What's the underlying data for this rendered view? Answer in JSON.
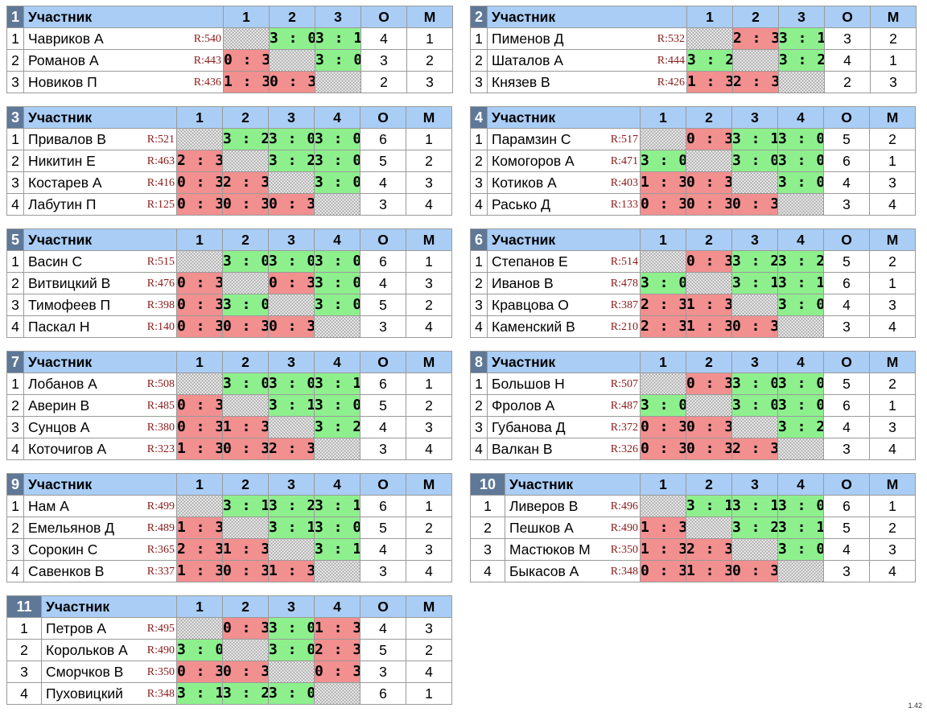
{
  "header_label": "Участник",
  "points_label": "О",
  "place_label": "М",
  "version": "1.42",
  "groups": [
    {
      "num": "1",
      "cols": [
        "1",
        "2",
        "3"
      ],
      "rows": [
        {
          "n": "1",
          "name": "Чавриков А",
          "rating": "R:540",
          "results": [
            null,
            "3 : 0",
            "3 : 1"
          ],
          "o": "4",
          "m": "1"
        },
        {
          "n": "2",
          "name": "Романов А",
          "rating": "R:443",
          "results": [
            "0 : 3",
            null,
            "3 : 0"
          ],
          "o": "3",
          "m": "2"
        },
        {
          "n": "3",
          "name": "Новиков П",
          "rating": "R:436",
          "results": [
            "1 : 3",
            "0 : 3",
            null
          ],
          "o": "2",
          "m": "3"
        }
      ]
    },
    {
      "num": "2",
      "cols": [
        "1",
        "2",
        "3"
      ],
      "rows": [
        {
          "n": "1",
          "name": "Пименов Д",
          "rating": "R:532",
          "results": [
            null,
            "2 : 3",
            "3 : 1"
          ],
          "o": "3",
          "m": "2"
        },
        {
          "n": "2",
          "name": "Шаталов А",
          "rating": "R:444",
          "results": [
            "3 : 2",
            null,
            "3 : 2"
          ],
          "o": "4",
          "m": "1"
        },
        {
          "n": "3",
          "name": "Князев В",
          "rating": "R:426",
          "results": [
            "1 : 3",
            "2 : 3",
            null
          ],
          "o": "2",
          "m": "3"
        }
      ]
    },
    {
      "num": "3",
      "cols": [
        "1",
        "2",
        "3",
        "4"
      ],
      "rows": [
        {
          "n": "1",
          "name": "Привалов В",
          "rating": "R:521",
          "results": [
            null,
            "3 : 2",
            "3 : 0",
            "3 : 0"
          ],
          "o": "6",
          "m": "1"
        },
        {
          "n": "2",
          "name": "Никитин Е",
          "rating": "R:463",
          "results": [
            "2 : 3",
            null,
            "3 : 2",
            "3 : 0"
          ],
          "o": "5",
          "m": "2"
        },
        {
          "n": "3",
          "name": "Костарев А",
          "rating": "R:416",
          "results": [
            "0 : 3",
            "2 : 3",
            null,
            "3 : 0"
          ],
          "o": "4",
          "m": "3"
        },
        {
          "n": "4",
          "name": "Лабутин П",
          "rating": "R:125",
          "results": [
            "0 : 3",
            "0 : 3",
            "0 : 3",
            null
          ],
          "o": "3",
          "m": "4"
        }
      ]
    },
    {
      "num": "4",
      "cols": [
        "1",
        "2",
        "3",
        "4"
      ],
      "rows": [
        {
          "n": "1",
          "name": "Парамзин С",
          "rating": "R:517",
          "results": [
            null,
            "0 : 3",
            "3 : 1",
            "3 : 0"
          ],
          "o": "5",
          "m": "2"
        },
        {
          "n": "2",
          "name": "Комогоров А",
          "rating": "R:471",
          "results": [
            "3 : 0",
            null,
            "3 : 0",
            "3 : 0"
          ],
          "o": "6",
          "m": "1"
        },
        {
          "n": "3",
          "name": "Котиков А",
          "rating": "R:403",
          "results": [
            "1 : 3",
            "0 : 3",
            null,
            "3 : 0"
          ],
          "o": "4",
          "m": "3"
        },
        {
          "n": "4",
          "name": "Расько Д",
          "rating": "R:133",
          "results": [
            "0 : 3",
            "0 : 3",
            "0 : 3",
            null
          ],
          "o": "3",
          "m": "4"
        }
      ]
    },
    {
      "num": "5",
      "cols": [
        "1",
        "2",
        "3",
        "4"
      ],
      "rows": [
        {
          "n": "1",
          "name": "Васин С",
          "rating": "R:515",
          "results": [
            null,
            "3 : 0",
            "3 : 0",
            "3 : 0"
          ],
          "o": "6",
          "m": "1"
        },
        {
          "n": "2",
          "name": "Витвицкий В",
          "rating": "R:476",
          "results": [
            "0 : 3",
            null,
            "0 : 3",
            "3 : 0"
          ],
          "o": "4",
          "m": "3"
        },
        {
          "n": "3",
          "name": "Тимофеев П",
          "rating": "R:398",
          "results": [
            "0 : 3",
            "3 : 0",
            null,
            "3 : 0"
          ],
          "o": "5",
          "m": "2"
        },
        {
          "n": "4",
          "name": "Паскал Н",
          "rating": "R:140",
          "results": [
            "0 : 3",
            "0 : 3",
            "0 : 3",
            null
          ],
          "o": "3",
          "m": "4"
        }
      ]
    },
    {
      "num": "6",
      "cols": [
        "1",
        "2",
        "3",
        "4"
      ],
      "rows": [
        {
          "n": "1",
          "name": "Степанов Е",
          "rating": "R:514",
          "results": [
            null,
            "0 : 3",
            "3 : 2",
            "3 : 2"
          ],
          "o": "5",
          "m": "2"
        },
        {
          "n": "2",
          "name": "Иванов В",
          "rating": "R:478",
          "results": [
            "3 : 0",
            null,
            "3 : 1",
            "3 : 1"
          ],
          "o": "6",
          "m": "1"
        },
        {
          "n": "3",
          "name": "Кравцова О",
          "rating": "R:387",
          "results": [
            "2 : 3",
            "1 : 3",
            null,
            "3 : 0"
          ],
          "o": "4",
          "m": "3"
        },
        {
          "n": "4",
          "name": "Каменский В",
          "rating": "R:210",
          "results": [
            "2 : 3",
            "1 : 3",
            "0 : 3",
            null
          ],
          "o": "3",
          "m": "4"
        }
      ]
    },
    {
      "num": "7",
      "cols": [
        "1",
        "2",
        "3",
        "4"
      ],
      "rows": [
        {
          "n": "1",
          "name": "Лобанов А",
          "rating": "R:508",
          "results": [
            null,
            "3 : 0",
            "3 : 0",
            "3 : 1"
          ],
          "o": "6",
          "m": "1"
        },
        {
          "n": "2",
          "name": "Аверин В",
          "rating": "R:485",
          "results": [
            "0 : 3",
            null,
            "3 : 1",
            "3 : 0"
          ],
          "o": "5",
          "m": "2"
        },
        {
          "n": "3",
          "name": "Сунцов А",
          "rating": "R:380",
          "results": [
            "0 : 3",
            "1 : 3",
            null,
            "3 : 2"
          ],
          "o": "4",
          "m": "3"
        },
        {
          "n": "4",
          "name": "Коточигов А",
          "rating": "R:323",
          "results": [
            "1 : 3",
            "0 : 3",
            "2 : 3",
            null
          ],
          "o": "3",
          "m": "4"
        }
      ]
    },
    {
      "num": "8",
      "cols": [
        "1",
        "2",
        "3",
        "4"
      ],
      "rows": [
        {
          "n": "1",
          "name": "Большов Н",
          "rating": "R:507",
          "results": [
            null,
            "0 : 3",
            "3 : 0",
            "3 : 0"
          ],
          "o": "5",
          "m": "2"
        },
        {
          "n": "2",
          "name": "Фролов А",
          "rating": "R:487",
          "results": [
            "3 : 0",
            null,
            "3 : 0",
            "3 : 0"
          ],
          "o": "6",
          "m": "1"
        },
        {
          "n": "3",
          "name": "Губанова Д",
          "rating": "R:372",
          "results": [
            "0 : 3",
            "0 : 3",
            null,
            "3 : 2"
          ],
          "o": "4",
          "m": "3"
        },
        {
          "n": "4",
          "name": "Валкан В",
          "rating": "R:326",
          "results": [
            "0 : 3",
            "0 : 3",
            "2 : 3",
            null
          ],
          "o": "3",
          "m": "4"
        }
      ]
    },
    {
      "num": "9",
      "cols": [
        "1",
        "2",
        "3",
        "4"
      ],
      "rows": [
        {
          "n": "1",
          "name": "Нам А",
          "rating": "R:499",
          "results": [
            null,
            "3 : 1",
            "3 : 2",
            "3 : 1"
          ],
          "o": "6",
          "m": "1"
        },
        {
          "n": "2",
          "name": "Емельянов Д",
          "rating": "R:489",
          "results": [
            "1 : 3",
            null,
            "3 : 1",
            "3 : 0"
          ],
          "o": "5",
          "m": "2"
        },
        {
          "n": "3",
          "name": "Сорокин С",
          "rating": "R:365",
          "results": [
            "2 : 3",
            "1 : 3",
            null,
            "3 : 1"
          ],
          "o": "4",
          "m": "3"
        },
        {
          "n": "4",
          "name": "Савенков В",
          "rating": "R:337",
          "results": [
            "1 : 3",
            "0 : 3",
            "1 : 3",
            null
          ],
          "o": "3",
          "m": "4"
        }
      ]
    },
    {
      "num": "10",
      "cols": [
        "1",
        "2",
        "3",
        "4"
      ],
      "rows": [
        {
          "n": "1",
          "name": "Ливеров В",
          "rating": "R:496",
          "results": [
            null,
            "3 : 1",
            "3 : 1",
            "3 : 0"
          ],
          "o": "6",
          "m": "1"
        },
        {
          "n": "2",
          "name": "Пешков А",
          "rating": "R:490",
          "results": [
            "1 : 3",
            null,
            "3 : 2",
            "3 : 1"
          ],
          "o": "5",
          "m": "2"
        },
        {
          "n": "3",
          "name": "Мастюков М",
          "rating": "R:350",
          "results": [
            "1 : 3",
            "2 : 3",
            null,
            "3 : 0"
          ],
          "o": "4",
          "m": "3"
        },
        {
          "n": "4",
          "name": "Быкасов А",
          "rating": "R:348",
          "results": [
            "0 : 3",
            "1 : 3",
            "0 : 3",
            null
          ],
          "o": "3",
          "m": "4"
        }
      ]
    },
    {
      "num": "11",
      "cols": [
        "1",
        "2",
        "3",
        "4"
      ],
      "rows": [
        {
          "n": "1",
          "name": "Петров А",
          "rating": "R:495",
          "results": [
            null,
            "0 : 3",
            "3 : 0",
            "1 : 3"
          ],
          "o": "4",
          "m": "3"
        },
        {
          "n": "2",
          "name": "Корольков А",
          "rating": "R:490",
          "results": [
            "3 : 0",
            null,
            "3 : 0",
            "2 : 3"
          ],
          "o": "5",
          "m": "2"
        },
        {
          "n": "3",
          "name": "Сморчков В",
          "rating": "R:350",
          "results": [
            "0 : 3",
            "0 : 3",
            null,
            "0 : 3"
          ],
          "o": "3",
          "m": "4"
        },
        {
          "n": "4",
          "name": "Пуховицкий",
          "rating": "R:348",
          "results": [
            "3 : 1",
            "3 : 2",
            "3 : 0",
            null
          ],
          "o": "6",
          "m": "1"
        }
      ]
    }
  ]
}
